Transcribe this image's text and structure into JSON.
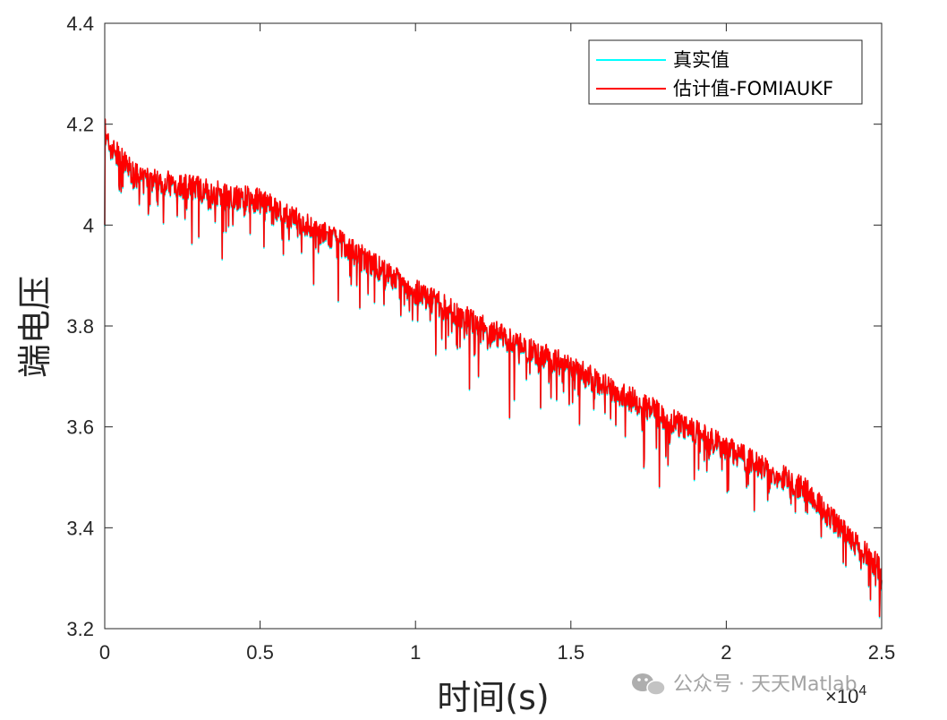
{
  "chart_data": {
    "type": "line",
    "xlabel": "时间(s)",
    "ylabel": "端电压",
    "xlim": [
      0,
      25000
    ],
    "ylim": [
      3.2,
      4.4
    ],
    "x_ticks": [
      0,
      5000,
      10000,
      15000,
      20000,
      25000
    ],
    "x_tick_labels": [
      "0",
      "0.5",
      "1",
      "1.5",
      "2",
      "2.5"
    ],
    "x_exponent_base": "×10",
    "x_exponent_power": "4",
    "y_ticks": [
      3.2,
      3.4,
      3.6,
      3.8,
      4.0,
      4.2,
      4.4
    ],
    "y_tick_labels": [
      "3.2",
      "3.4",
      "3.6",
      "3.8",
      "4",
      "4.2",
      "4.4"
    ],
    "grid": false,
    "legend_position": "top-right",
    "series": [
      {
        "name": "真实值",
        "color": "#00FFFF",
        "x": [
          0,
          1000,
          2500,
          5000,
          7500,
          10000,
          12500,
          15000,
          17500,
          20000,
          22500,
          24000,
          25000
        ],
        "values": [
          4.16,
          4.09,
          4.07,
          4.04,
          3.96,
          3.86,
          3.78,
          3.71,
          3.63,
          3.55,
          3.47,
          3.37,
          3.31
        ]
      },
      {
        "name": "估计值-FOMIAUKF",
        "color": "#FF0000",
        "x": [
          0,
          1000,
          2500,
          5000,
          7500,
          10000,
          12500,
          15000,
          17500,
          20000,
          22500,
          24000,
          25000
        ],
        "values": [
          4.16,
          4.09,
          4.07,
          4.04,
          3.96,
          3.86,
          3.78,
          3.71,
          3.63,
          3.55,
          3.47,
          3.37,
          3.31
        ]
      }
    ]
  },
  "watermark": {
    "text": "公众号 · 天天Matlab",
    "icon": "wechat-icon"
  }
}
